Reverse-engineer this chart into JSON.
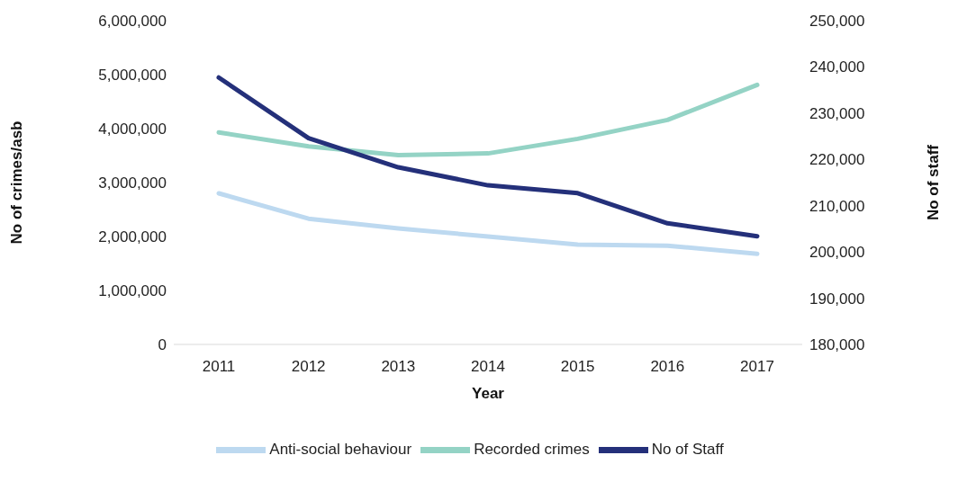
{
  "chart_data": {
    "type": "line",
    "xlabel": "Year",
    "ylabel": "No of crimes/asb",
    "y2label": "No of staff",
    "categories": [
      "2011",
      "2012",
      "2013",
      "2014",
      "2015",
      "2016",
      "2017"
    ],
    "series": [
      {
        "name": "Anti-social behaviour",
        "color": "#bdd9f0",
        "values": [
          2800000,
          2330000,
          2150000,
          2000000,
          1850000,
          1830000,
          1680000
        ]
      },
      {
        "name": "Recorded crimes",
        "color": "#94d3c5",
        "values": [
          3930000,
          3670000,
          3510000,
          3540000,
          3810000,
          4160000,
          4810000
        ]
      },
      {
        "name": "No of Staff",
        "color": "#24307a",
        "axis": "y2",
        "values": [
          237700,
          224600,
          218300,
          214400,
          212700,
          206200,
          203400
        ]
      }
    ],
    "ylim": [
      0,
      6000000
    ],
    "yticks": [
      0,
      {
        "value": 1000000,
        "label": "1,000,000"
      },
      {
        "value": 2000000,
        "label": "2,000,000"
      },
      {
        "value": 3000000,
        "label": "3,000,000"
      },
      {
        "value": 4000000,
        "label": "4,000,000"
      },
      {
        "value": 5000000,
        "label": "5,000,000"
      },
      {
        "value": 6000000,
        "label": "6,000,000"
      }
    ],
    "y2lim": [
      180000,
      250000
    ],
    "y2ticks": [
      {
        "value": 180000,
        "label": "180,000"
      },
      {
        "value": 190000,
        "label": "190,000"
      },
      {
        "value": 200000,
        "label": "200,000"
      },
      {
        "value": 210000,
        "label": "210,000"
      },
      {
        "value": 220000,
        "label": "220,000"
      },
      {
        "value": 230000,
        "label": "230,000"
      },
      {
        "value": 240000,
        "label": "240,000"
      },
      {
        "value": 250000,
        "label": "250,000"
      }
    ],
    "grid": false,
    "legend": "bottom",
    "marker": "none",
    "line_style": "solid"
  }
}
